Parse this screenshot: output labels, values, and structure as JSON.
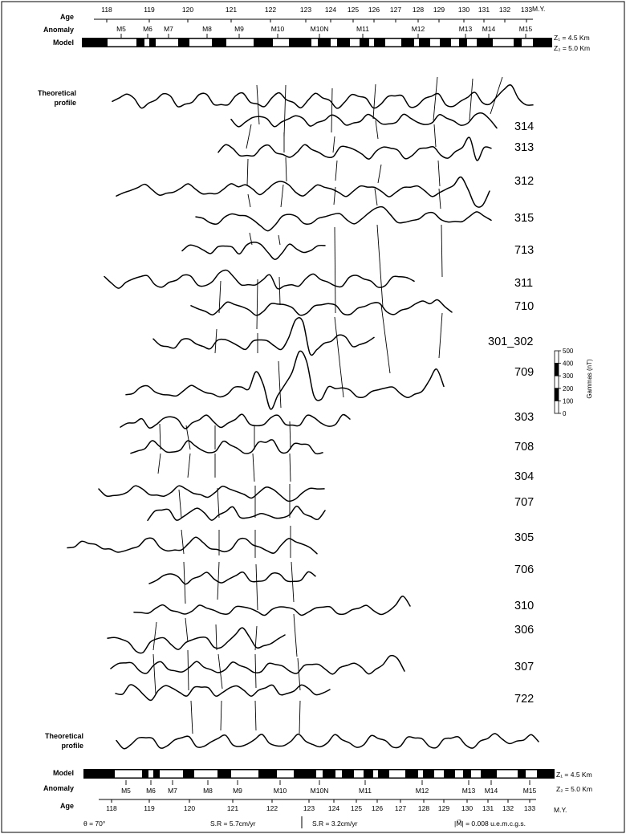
{
  "labels": {
    "age": "Age",
    "anomaly": "Anomaly",
    "model": "Model",
    "theoretical_profile": [
      "Theoretical",
      "profile"
    ],
    "my_unit": "M.Y.",
    "z1": "Z₁ = 4.5 Km",
    "z2": "Z₂ = 5.0 Km"
  },
  "age_ticks": [
    "118",
    "119",
    "120",
    "121",
    "122",
    "123",
    "124",
    "125",
    "126",
    "127",
    "128",
    "129",
    "130",
    "131",
    "132",
    "133"
  ],
  "anomalies_top": [
    "M5",
    "M6",
    "M7",
    "M8",
    "M9",
    "M10",
    "M10N",
    "M11",
    "M12",
    "M13",
    "M14",
    "M15"
  ],
  "anomalies_bottom": [
    "M5",
    "M6",
    "M7",
    "M8",
    "M9",
    "M10",
    "M10N",
    "M11",
    "M12",
    "M13",
    "M14",
    "M15"
  ],
  "profiles": [
    "314",
    "313",
    "312",
    "315",
    "713",
    "311",
    "710",
    "301_302",
    "709",
    "303",
    "708",
    "304",
    "707",
    "305",
    "706",
    "310",
    "306",
    "307",
    "722"
  ],
  "scale_bar": {
    "title": "Gammas (nT)",
    "ticks": [
      "500",
      "400",
      "300",
      "200",
      "100",
      "0"
    ],
    "values": [
      500,
      400,
      300,
      200,
      100,
      0
    ]
  },
  "footer": {
    "theta": "θ = 70°",
    "sr1": "S.R = 5.7cm/yr",
    "sr2": "S.R = 3.2cm/yr",
    "magnetization": "|M⃗| = 0.008 u.e.m.c.g.s."
  }
}
